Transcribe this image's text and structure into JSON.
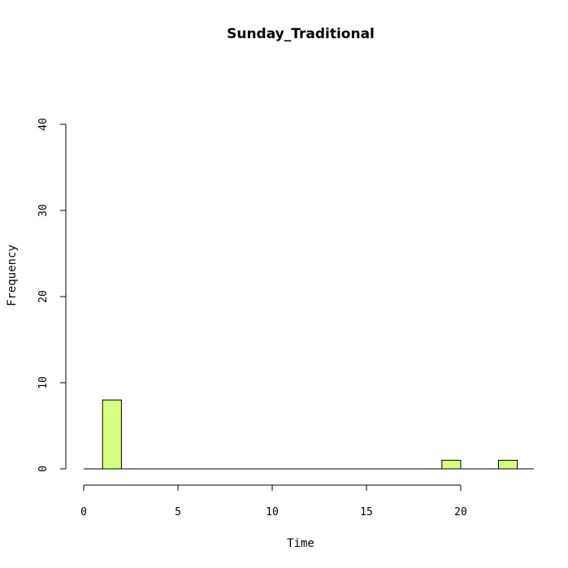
{
  "chart_data": {
    "type": "bar",
    "title": "Sunday_Traditional",
    "xlabel": "Time",
    "ylabel": "Frequency",
    "xlim": [
      0,
      24
    ],
    "ylim": [
      0,
      40
    ],
    "x_ticks": [
      0,
      5,
      10,
      15,
      20
    ],
    "y_ticks": [
      0,
      10,
      20,
      30,
      40
    ],
    "bar_color": "#d9ff80",
    "grid": false,
    "bins": [
      {
        "start": 1,
        "end": 2,
        "count": 8
      },
      {
        "start": 19,
        "end": 20,
        "count": 1
      },
      {
        "start": 22,
        "end": 23,
        "count": 1
      }
    ]
  }
}
